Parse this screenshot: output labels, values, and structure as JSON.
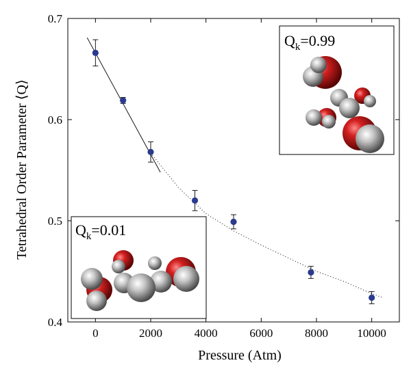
{
  "chart_data": {
    "type": "scatter",
    "xlabel": "Pressure (Atm)",
    "ylabel": "Tetrahedral Order Parameter ⟨Q⟩",
    "xlim": [
      -1000,
      11000
    ],
    "ylim": [
      0.4,
      0.7
    ],
    "x_ticks": [
      "0",
      "2000",
      "4000",
      "6000",
      "8000",
      "10000"
    ],
    "y_ticks": [
      "0.4",
      "0.5",
      "0.6",
      "0.7"
    ],
    "grid": false,
    "legend": "none",
    "series": [
      {
        "points": [
          {
            "x": 0,
            "y": 0.666,
            "err": 0.013
          },
          {
            "x": 1000,
            "y": 0.619,
            "err": 0.003
          },
          {
            "x": 2000,
            "y": 0.568,
            "err": 0.01
          },
          {
            "x": 3600,
            "y": 0.52,
            "err": 0.01
          },
          {
            "x": 5000,
            "y": 0.499,
            "err": 0.007
          },
          {
            "x": 7800,
            "y": 0.449,
            "err": 0.006
          },
          {
            "x": 10000,
            "y": 0.424,
            "err": 0.006
          }
        ],
        "color": "#2b3a8f"
      }
    ],
    "fits": [
      {
        "style": "solid",
        "x": [
          -300,
          2350
        ],
        "y": [
          0.681,
          0.548
        ]
      },
      {
        "style": "dotted",
        "x": [
          2000,
          3000,
          4000,
          5000,
          6000,
          7000,
          8000,
          9000,
          10000,
          10400
        ],
        "y": [
          0.567,
          0.533,
          0.507,
          0.49,
          0.476,
          0.463,
          0.45,
          0.44,
          0.428,
          0.424
        ]
      }
    ],
    "annotations": [
      {
        "main": "Q",
        "sub": "k",
        "value": "=0.99"
      },
      {
        "main": "Q",
        "sub": "k",
        "value": "=0.01"
      }
    ]
  },
  "colors": {
    "point": "#2b3a8f",
    "oxygen": "#b01818",
    "hydrogen": "#c8c8c8"
  }
}
